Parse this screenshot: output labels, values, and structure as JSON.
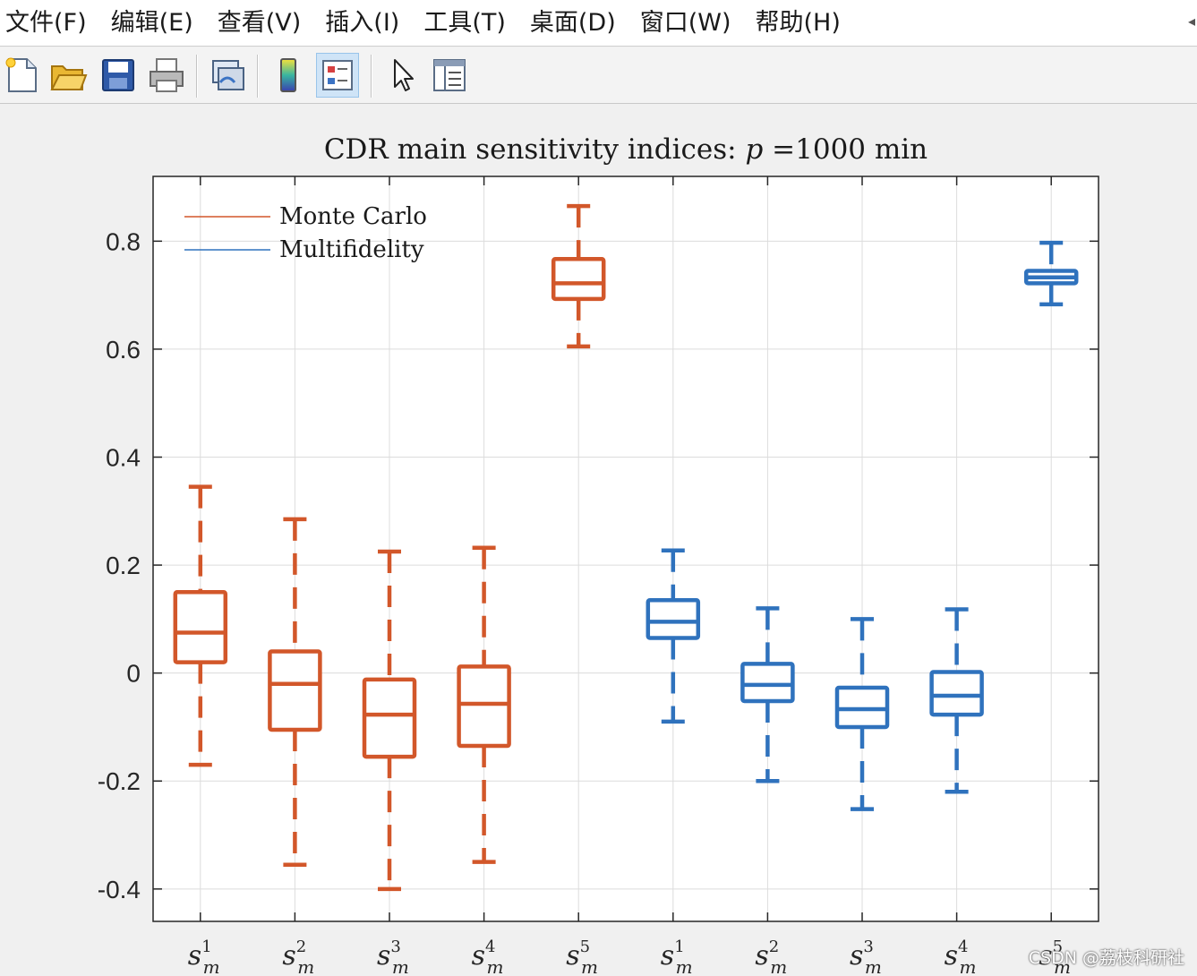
{
  "menu": {
    "items": [
      "文件(F)",
      "编辑(E)",
      "查看(V)",
      "插入(I)",
      "工具(T)",
      "桌面(D)",
      "窗口(W)",
      "帮助(H)"
    ]
  },
  "toolbar": {
    "buttons": [
      {
        "name": "new-figure-icon"
      },
      {
        "name": "open-file-icon"
      },
      {
        "name": "save-icon"
      },
      {
        "name": "print-icon"
      },
      {
        "name": "link-plot-icon"
      },
      {
        "name": "colorbar-icon"
      },
      {
        "name": "legend-icon",
        "active": true
      },
      {
        "name": "edit-plot-icon"
      },
      {
        "name": "property-inspector-icon"
      }
    ]
  },
  "watermark": "CSDN @荔枝科研社",
  "colors": {
    "monte_carlo": "#d2572a",
    "multifidelity": "#2f72bd"
  },
  "chart_data": {
    "type": "boxplot",
    "title_prefix": "CDR main sensitivity indices: ",
    "title_var": "p",
    "title_suffix": " =1000 min",
    "xlabel": "",
    "ylabel": "",
    "ylim": [
      -0.46,
      0.92
    ],
    "yticks": [
      -0.4,
      -0.2,
      0,
      0.2,
      0.4,
      0.6,
      0.8
    ],
    "ytick_labels": [
      "-0.4",
      "-0.2",
      "0",
      "0.2",
      "0.4",
      "0.6",
      "0.8"
    ],
    "grid": true,
    "legend_position": "top-left",
    "categories": [
      {
        "base": "s",
        "sub": "m",
        "sup": "1"
      },
      {
        "base": "s",
        "sub": "m",
        "sup": "2"
      },
      {
        "base": "s",
        "sub": "m",
        "sup": "3"
      },
      {
        "base": "s",
        "sub": "m",
        "sup": "4"
      },
      {
        "base": "s",
        "sub": "m",
        "sup": "5"
      },
      {
        "base": "s",
        "sub": "m",
        "sup": "1"
      },
      {
        "base": "s",
        "sub": "m",
        "sup": "2"
      },
      {
        "base": "s",
        "sub": "m",
        "sup": "3"
      },
      {
        "base": "s",
        "sub": "m",
        "sup": "4"
      },
      {
        "base": "s",
        "sub": "m",
        "sup": "5"
      }
    ],
    "series": [
      {
        "name": "Monte Carlo",
        "color": "#d2572a",
        "boxes": [
          {
            "position": 1,
            "min": -0.17,
            "q1": 0.02,
            "median": 0.075,
            "q3": 0.15,
            "max": 0.345
          },
          {
            "position": 2,
            "min": -0.355,
            "q1": -0.105,
            "median": -0.02,
            "q3": 0.04,
            "max": 0.285
          },
          {
            "position": 3,
            "min": -0.4,
            "q1": -0.155,
            "median": -0.077,
            "q3": -0.012,
            "max": 0.225
          },
          {
            "position": 4,
            "min": -0.35,
            "q1": -0.135,
            "median": -0.057,
            "q3": 0.012,
            "max": 0.232
          },
          {
            "position": 5,
            "min": 0.605,
            "q1": 0.693,
            "median": 0.722,
            "q3": 0.767,
            "max": 0.865
          }
        ]
      },
      {
        "name": "Multifidelity",
        "color": "#2f72bd",
        "boxes": [
          {
            "position": 6,
            "min": -0.09,
            "q1": 0.065,
            "median": 0.095,
            "q3": 0.135,
            "max": 0.227
          },
          {
            "position": 7,
            "min": -0.2,
            "q1": -0.052,
            "median": -0.022,
            "q3": 0.017,
            "max": 0.12
          },
          {
            "position": 8,
            "min": -0.252,
            "q1": -0.1,
            "median": -0.067,
            "q3": -0.027,
            "max": 0.1
          },
          {
            "position": 9,
            "min": -0.22,
            "q1": -0.077,
            "median": -0.042,
            "q3": 0.002,
            "max": 0.118
          },
          {
            "position": 10,
            "min": 0.683,
            "q1": 0.722,
            "median": 0.733,
            "q3": 0.745,
            "max": 0.797
          }
        ]
      }
    ]
  }
}
